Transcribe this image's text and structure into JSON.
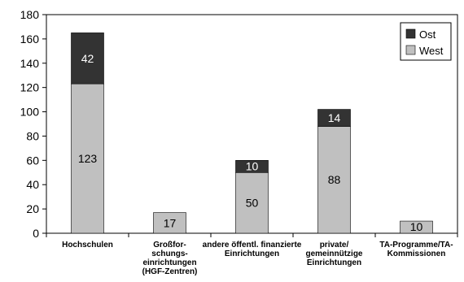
{
  "chart_data": {
    "type": "bar",
    "stacked": true,
    "categories": [
      [
        "Hochschulen"
      ],
      [
        "Großfor-",
        "schungs-",
        "einrichtungen",
        "(HGF-Zentren)"
      ],
      [
        "andere öffentl. finanzierte",
        "Einrichtungen"
      ],
      [
        "private/",
        "gemeinnützige",
        "Einrichtungen"
      ],
      [
        "TA-Programme/TA-",
        "Kommissionen"
      ]
    ],
    "series": [
      {
        "name": "West",
        "color": "#c0c0c0",
        "values": [
          123,
          17,
          50,
          88,
          10
        ]
      },
      {
        "name": "Ost",
        "color": "#333333",
        "values": [
          42,
          0,
          10,
          14,
          0
        ]
      }
    ],
    "ylim": [
      0,
      180
    ],
    "yticks": [
      0,
      20,
      40,
      60,
      80,
      100,
      120,
      140,
      160,
      180
    ],
    "legend": {
      "position": "top-right",
      "order": [
        "Ost",
        "West"
      ]
    },
    "grid": false
  }
}
